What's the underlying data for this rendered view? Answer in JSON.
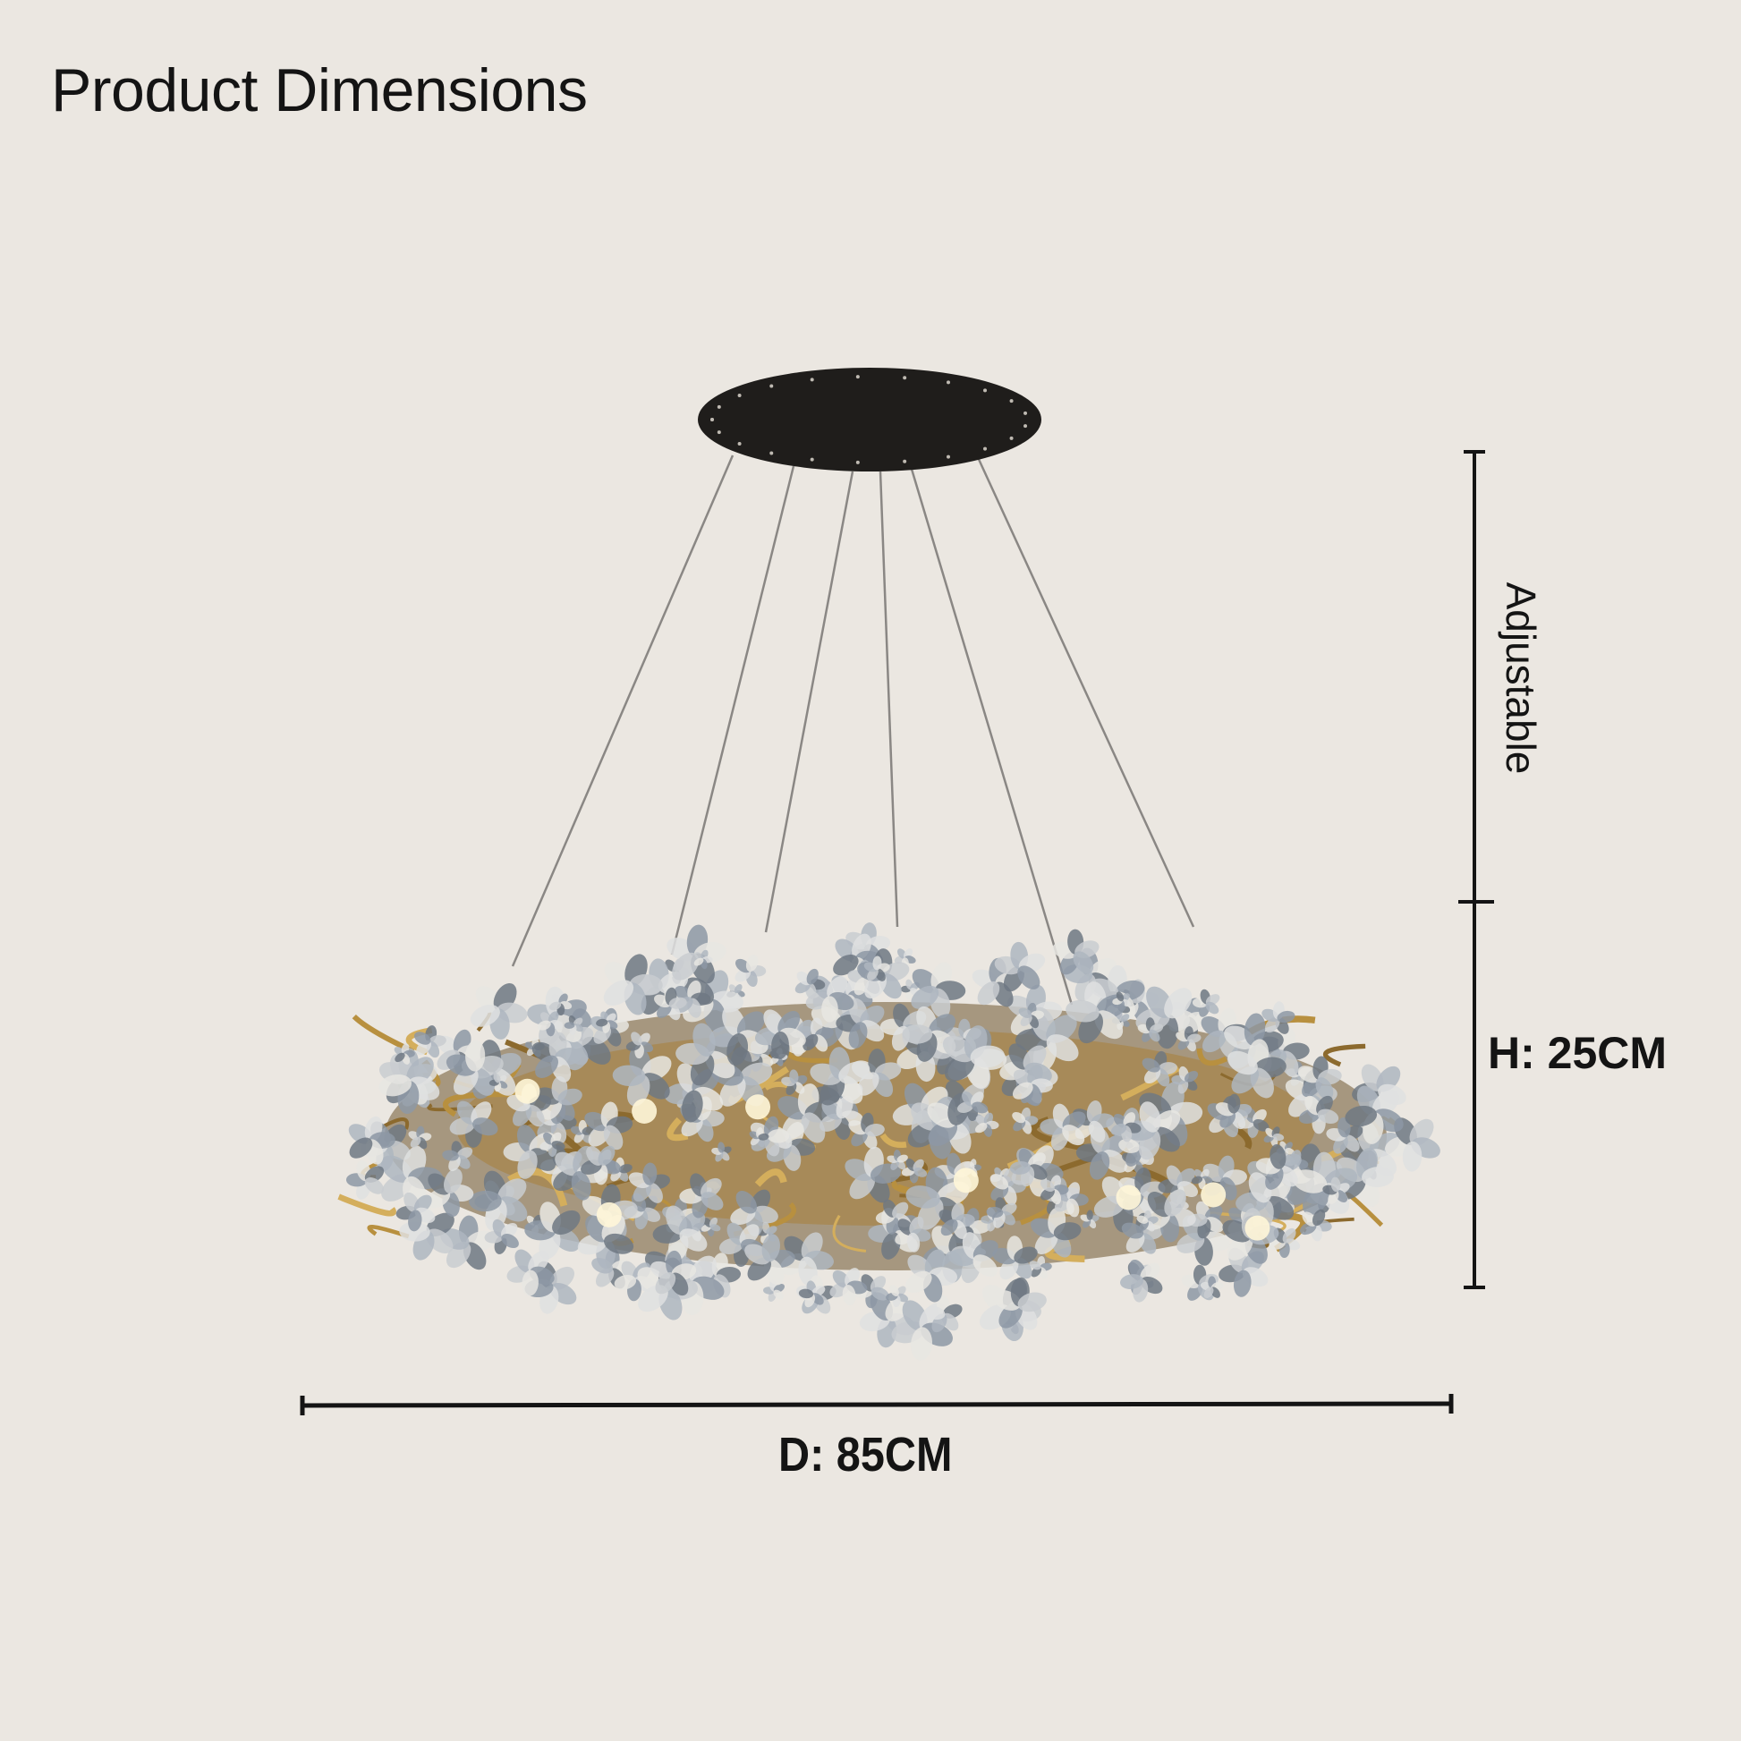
{
  "title": "Product Dimensions",
  "dimensions": {
    "adjustable_label": "Adjustable",
    "height_label": "H: 25CM",
    "diameter_label": "D: 85CM"
  },
  "colors": {
    "background": "#ebe7e1",
    "text": "#141414",
    "canopy": "#1f1d1b",
    "brass": "#a8823f",
    "crystal": "#c9ccd0"
  },
  "product_image": "crystal-flower-ring-chandelier"
}
